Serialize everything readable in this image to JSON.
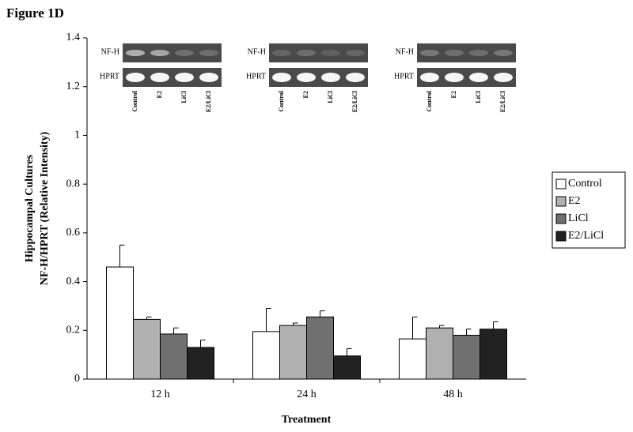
{
  "chart_data": {
    "type": "bar",
    "title": "Figure 1D",
    "ylabel": [
      "Hippocampal Cultures",
      "NF-H/HPRT (Relative Intensity)"
    ],
    "xlabel": "Treatment",
    "categories": [
      "12 h",
      "24 h",
      "48 h"
    ],
    "series": [
      {
        "name": "Control",
        "color": "#ffffff",
        "values": [
          0.46,
          0.195,
          0.165
        ],
        "errors": [
          0.09,
          0.095,
          0.09
        ]
      },
      {
        "name": "E2",
        "color": "#b0b0b0",
        "values": [
          0.245,
          0.22,
          0.21
        ],
        "errors": [
          0.01,
          0.01,
          0.01
        ]
      },
      {
        "name": "LiCl",
        "color": "#707070",
        "values": [
          0.185,
          0.255,
          0.18
        ],
        "errors": [
          0.025,
          0.025,
          0.025
        ]
      },
      {
        "name": "E2/LiCl",
        "color": "#222222",
        "values": [
          0.13,
          0.095,
          0.205
        ],
        "errors": [
          0.03,
          0.03,
          0.03
        ]
      }
    ],
    "ylim": [
      0,
      1.4
    ],
    "yticks": [
      0,
      0.2,
      0.4,
      0.6,
      0.8,
      1,
      1.2,
      1.4
    ],
    "legend": "right",
    "insets": [
      {
        "rows": [
          "NF-H",
          "HPRT"
        ],
        "lanes": [
          "Control",
          "E2",
          "LiCl",
          "E2/LiCl"
        ]
      },
      {
        "rows": [
          "NF-H",
          "HPRT"
        ],
        "lanes": [
          "Control",
          "E2",
          "LiCl",
          "E2/LiCl"
        ]
      },
      {
        "rows": [
          "NF-H",
          "HPRT"
        ],
        "lanes": [
          "Control",
          "E2",
          "LiCl",
          "E2/LiCl"
        ]
      }
    ]
  }
}
